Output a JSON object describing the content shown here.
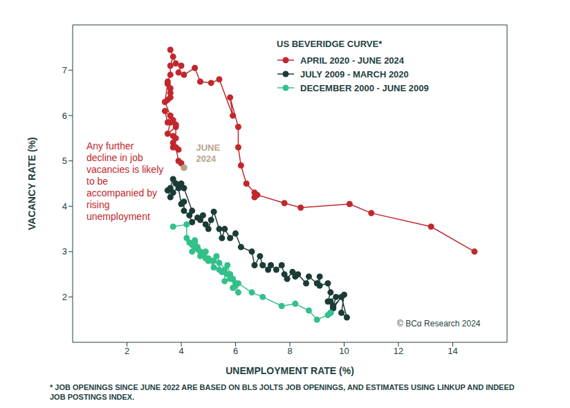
{
  "chart_data": {
    "type": "scatter",
    "title": "US BEVERIDGE CURVE*",
    "x_label": "UNEMPLOYMENT RATE (%)",
    "y_label": "VACANCY RATE (%)",
    "xlim": [
      0,
      16
    ],
    "ylim": [
      1,
      8
    ],
    "xticks": [
      2,
      4,
      6,
      8,
      10,
      12,
      14
    ],
    "yticks": [
      2,
      3,
      4,
      5,
      6,
      7
    ],
    "grid": false,
    "series": [
      {
        "name": "APRIL 2020 - JUNE 2024",
        "color": "#c1272d",
        "marker": "circle",
        "line_style": "solid",
        "x": [
          14.8,
          13.2,
          11.0,
          10.2,
          8.4,
          7.8,
          6.8,
          6.7,
          6.7,
          6.4,
          6.2,
          6.1,
          6.1,
          5.8,
          5.9,
          5.4,
          5.1,
          4.7,
          4.5,
          4.1,
          3.9,
          4.0,
          3.8,
          3.6,
          3.7,
          3.6,
          3.6,
          3.5,
          3.6,
          3.5,
          3.6,
          3.6,
          3.5,
          3.4,
          3.6,
          3.5,
          3.4,
          3.7,
          3.6,
          3.5,
          3.8,
          3.8,
          3.8,
          3.7,
          3.7,
          3.7,
          3.9,
          3.8,
          3.9,
          4.0,
          4.1
        ],
        "values": [
          3.0,
          3.55,
          3.85,
          4.05,
          3.97,
          4.07,
          4.25,
          4.2,
          4.3,
          4.5,
          4.9,
          5.3,
          5.75,
          6.4,
          6.0,
          6.8,
          6.72,
          6.75,
          7.05,
          6.9,
          6.95,
          7.1,
          7.15,
          7.45,
          7.3,
          7.1,
          6.9,
          6.75,
          6.5,
          6.35,
          6.6,
          6.4,
          6.7,
          6.3,
          6.0,
          5.85,
          6.1,
          5.9,
          5.85,
          5.6,
          5.75,
          5.8,
          5.5,
          5.3,
          5.55,
          5.4,
          5.25,
          5.3,
          5.0,
          4.95,
          4.85
        ]
      },
      {
        "name": "JULY 2009 - MARCH 2020",
        "color": "#1b3b36",
        "marker": "circle",
        "line_style": "solid",
        "x": [
          9.5,
          9.5,
          9.6,
          9.9,
          10.1,
          9.9,
          10.0,
          9.6,
          9.7,
          9.4,
          9.5,
          9.4,
          9.1,
          9.1,
          9.0,
          8.7,
          8.6,
          8.3,
          8.2,
          8.1,
          7.9,
          7.8,
          7.7,
          7.5,
          7.3,
          7.2,
          7.0,
          6.9,
          6.7,
          6.6,
          6.2,
          6.0,
          5.8,
          5.6,
          5.5,
          5.4,
          5.2,
          5.1,
          5.0,
          4.9,
          4.7,
          4.8,
          4.6,
          4.4,
          4.3,
          4.1,
          4.1,
          4.0,
          3.9,
          3.8,
          3.7,
          3.6,
          3.5,
          3.6,
          3.7,
          4.0,
          4.1,
          4.4
        ],
        "values": [
          1.65,
          1.9,
          1.75,
          2.0,
          1.55,
          1.65,
          2.05,
          1.8,
          2.0,
          1.9,
          2.1,
          2.3,
          2.25,
          2.45,
          2.3,
          2.45,
          2.3,
          2.5,
          2.45,
          2.55,
          2.4,
          2.5,
          2.7,
          2.6,
          2.7,
          2.6,
          2.7,
          2.9,
          2.7,
          3.0,
          3.1,
          3.4,
          3.3,
          3.5,
          3.3,
          3.5,
          3.88,
          3.7,
          3.5,
          3.6,
          3.7,
          3.8,
          3.75,
          3.65,
          3.8,
          3.9,
          4.1,
          4.05,
          4.4,
          4.5,
          4.6,
          4.4,
          4.35,
          4.2,
          4.3,
          4.5,
          4.4,
          3.9
        ]
      },
      {
        "name": "DECEMBER 2000 - JUNE 2009",
        "color": "#33c08a",
        "marker": "circle",
        "line_style": "solid",
        "x": [
          3.7,
          4.2,
          4.2,
          4.3,
          4.5,
          4.9,
          5.0,
          5.3,
          5.6,
          5.7,
          5.8,
          5.9,
          5.7,
          6.0,
          5.9,
          6.1,
          6.0,
          5.8,
          5.6,
          5.6,
          5.4,
          5.4,
          5.2,
          5.2,
          5.0,
          4.8,
          4.7,
          4.6,
          4.4,
          4.5,
          4.5,
          4.4,
          4.6,
          4.7,
          4.9,
          5.0,
          5.5,
          5.8,
          6.1,
          6.6,
          7.0,
          7.7,
          8.2,
          8.7,
          9.0,
          9.4,
          9.5
        ],
        "values": [
          3.55,
          3.6,
          3.3,
          3.2,
          3.1,
          3.0,
          2.8,
          2.9,
          2.6,
          2.7,
          2.5,
          2.4,
          2.5,
          2.3,
          2.2,
          2.1,
          2.25,
          2.4,
          2.35,
          2.55,
          2.6,
          2.75,
          2.8,
          2.65,
          2.85,
          2.95,
          3.0,
          3.1,
          3.0,
          3.2,
          3.25,
          3.15,
          3.05,
          2.9,
          2.85,
          2.8,
          2.55,
          2.5,
          2.3,
          2.1,
          2.0,
          1.8,
          1.85,
          1.7,
          1.5,
          1.6,
          1.65
        ]
      }
    ],
    "annotations": [
      {
        "text": "Any further decline in job vacancies is likely to be accompanied by rising unemployment",
        "color": "#c1272d"
      },
      {
        "text": "JUNE 2024",
        "x": 4.1,
        "y": 4.85,
        "color": "#b8a48c"
      }
    ],
    "credit": "© BCα Research 2024",
    "footnote": "* JOB OPENINGS SINCE JUNE 2022 ARE BASED ON BLS JOLTS JOB OPENINGS, AND ESTIMATES USING LINKUP AND INDEED JOB POSTINGS INDEX."
  }
}
